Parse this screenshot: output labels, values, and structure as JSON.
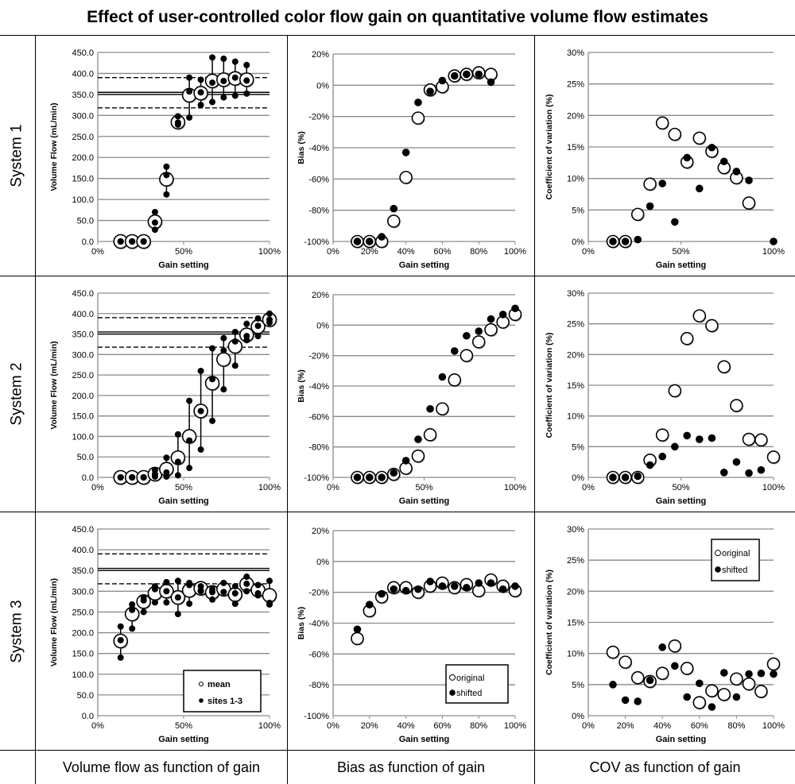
{
  "title": "Effect of user-controlled color flow gain on quantitative volume flow estimates",
  "rows": [
    "System 1",
    "System 2",
    "System 3"
  ],
  "footers": [
    "Volume flow as function of gain",
    "Bias as function of gain",
    "COV as function of gain"
  ],
  "chart_data": [
    {
      "type": "scatter",
      "system": "System 1",
      "ylabel": "Volume Flow (mL/min)",
      "xlabel": "Gain setting",
      "ylim": [
        0,
        450
      ],
      "xlim": [
        0,
        100
      ],
      "yticks": [
        "0.0",
        "50.0",
        "100.0",
        "150.0",
        "200.0",
        "250.0",
        "300.0",
        "350.0",
        "400.0",
        "450.0"
      ],
      "xticks": [
        "0%",
        "50%",
        "100%"
      ],
      "ref_lines": [
        {
          "value": 390,
          "style": "dashed"
        },
        {
          "value": 355,
          "style": "solid"
        },
        {
          "value": 350,
          "style": "solid"
        },
        {
          "value": 318,
          "style": "dashed"
        }
      ],
      "x": [
        13.3,
        20,
        26.7,
        33.3,
        40,
        46.7,
        53.3,
        60,
        66.7,
        73.3,
        80,
        86.7
      ],
      "mean": [
        0,
        0,
        0,
        47,
        148,
        284,
        348,
        353,
        382,
        385,
        388,
        385
      ],
      "sites": [
        [
          0,
          0,
          0
        ],
        [
          0,
          0,
          0
        ],
        [
          0,
          0,
          0
        ],
        [
          70,
          45,
          28
        ],
        [
          178,
          158,
          112
        ],
        [
          298,
          283,
          278
        ],
        [
          390,
          357,
          295
        ],
        [
          385,
          355,
          325
        ],
        [
          438,
          378,
          332
        ],
        [
          435,
          382,
          343
        ],
        [
          428,
          390,
          347
        ],
        [
          420,
          383,
          352
        ]
      ]
    },
    {
      "type": "scatter",
      "system": "System 1",
      "ylabel": "Bias (%)",
      "xlabel": "Gain setting",
      "ylim": [
        -100,
        20
      ],
      "xlim": [
        0,
        100
      ],
      "yticks": [
        "-100%",
        "-80%",
        "-60%",
        "-40%",
        "-20%",
        "0%",
        "20%"
      ],
      "xticks": [
        "0%",
        "20%",
        "40%",
        "60%",
        "80%",
        "100%"
      ],
      "x": [
        13.3,
        20,
        26.7,
        33.3,
        40,
        46.7,
        53.3,
        60,
        66.7,
        73.3,
        80,
        86.7
      ],
      "series": [
        {
          "name": "original",
          "values": [
            -100,
            -100,
            -100,
            -87,
            -59,
            -21,
            -3,
            -1,
            6,
            7,
            8,
            7
          ]
        },
        {
          "name": "shifted",
          "values": [
            -100,
            -100,
            -97,
            -79,
            -43,
            -11,
            -4,
            3,
            6,
            7,
            7,
            2
          ]
        }
      ]
    },
    {
      "type": "scatter",
      "system": "System 1",
      "ylabel": "Coefficient of variation (%)",
      "xlabel": "Gain setting",
      "ylim": [
        0,
        30
      ],
      "xlim": [
        0,
        100
      ],
      "yticks": [
        "0%",
        "5%",
        "10%",
        "15%",
        "20%",
        "25%",
        "30%"
      ],
      "xticks": [
        "0%",
        "50%",
        "100%"
      ],
      "x": [
        13.3,
        20,
        26.7,
        33.3,
        40,
        46.7,
        53.3,
        60,
        66.7,
        73.3,
        80,
        86.7,
        100
      ],
      "series": [
        {
          "name": "original",
          "values": [
            0,
            0,
            4.3,
            9.1,
            18.8,
            17.0,
            12.6,
            16.4,
            14.3,
            11.7,
            10.1,
            6.1,
            null
          ]
        },
        {
          "name": "shifted",
          "values": [
            0,
            0,
            0.3,
            5.6,
            9.2,
            3.1,
            13.3,
            8.4,
            14.9,
            12.7,
            11.1,
            9.7,
            0
          ]
        }
      ]
    },
    {
      "type": "scatter",
      "system": "System 2",
      "ylabel": "Volume Flow (mL/min)",
      "xlabel": "Gain setting",
      "ylim": [
        0,
        450
      ],
      "xlim": [
        0,
        100
      ],
      "yticks": [
        "0.0",
        "50.0",
        "100.0",
        "150.0",
        "200.0",
        "250.0",
        "300.0",
        "350.0",
        "400.0",
        "450.0"
      ],
      "xticks": [
        "0%",
        "50%",
        "100%"
      ],
      "ref_lines": [
        {
          "value": 390,
          "style": "dashed"
        },
        {
          "value": 355,
          "style": "solid"
        },
        {
          "value": 350,
          "style": "solid"
        },
        {
          "value": 318,
          "style": "dashed"
        }
      ],
      "x": [
        13.3,
        20,
        26.7,
        33.3,
        40,
        46.7,
        53.3,
        60,
        66.7,
        73.3,
        80,
        86.7,
        93.3,
        100
      ],
      "mean": [
        0,
        0,
        0,
        8,
        20,
        48,
        100,
        162,
        230,
        288,
        320,
        348,
        368,
        385
      ],
      "sites": [
        [
          0,
          0,
          0
        ],
        [
          0,
          0,
          0
        ],
        [
          0,
          0,
          0
        ],
        [
          18,
          8,
          2
        ],
        [
          48,
          12,
          2
        ],
        [
          105,
          38,
          5
        ],
        [
          187,
          90,
          23
        ],
        [
          260,
          162,
          68
        ],
        [
          315,
          240,
          138
        ],
        [
          340,
          310,
          215
        ],
        [
          355,
          332,
          273
        ],
        [
          375,
          345,
          335
        ],
        [
          388,
          370,
          345
        ],
        [
          400,
          385,
          378
        ]
      ]
    },
    {
      "type": "scatter",
      "system": "System 2",
      "ylabel": "Bias (%)",
      "xlabel": "Gain setting",
      "ylim": [
        -100,
        20
      ],
      "xlim": [
        0,
        100
      ],
      "yticks": [
        "-100%",
        "-80%",
        "-60%",
        "-40%",
        "-20%",
        "0%",
        "20%"
      ],
      "xticks": [
        "0%",
        "50%",
        "100%"
      ],
      "x": [
        13.3,
        20,
        26.7,
        33.3,
        40,
        46.7,
        53.3,
        60,
        66.7,
        73.3,
        80,
        86.7,
        93.3,
        100
      ],
      "series": [
        {
          "name": "original",
          "values": [
            -100,
            -100,
            -100,
            -98,
            -94,
            -86,
            -72,
            -55,
            -36,
            -20,
            -11,
            -3,
            2,
            7
          ]
        },
        {
          "name": "shifted",
          "values": [
            -100,
            -100,
            -100,
            -97,
            -89,
            -75,
            -55,
            -34,
            -17,
            -7,
            -4,
            4,
            7,
            11
          ]
        }
      ]
    },
    {
      "type": "scatter",
      "system": "System 2",
      "ylabel": "Coefficient of variation (%)",
      "xlabel": "Gain setting",
      "ylim": [
        0,
        30
      ],
      "xlim": [
        0,
        100
      ],
      "yticks": [
        "0%",
        "5%",
        "10%",
        "15%",
        "20%",
        "25%",
        "30%"
      ],
      "xticks": [
        "0%",
        "50%",
        "100%"
      ],
      "x": [
        13.3,
        20,
        26.7,
        33.3,
        40,
        46.7,
        53.3,
        60,
        66.7,
        73.3,
        80,
        86.7,
        93.3,
        100
      ],
      "series": [
        {
          "name": "original",
          "values": [
            0,
            0,
            0,
            2.8,
            6.9,
            14.1,
            22.6,
            26.3,
            24.7,
            18.0,
            11.7,
            6.2,
            6.1,
            3.3
          ]
        },
        {
          "name": "shifted",
          "values": [
            0,
            0,
            0.2,
            2.0,
            3.4,
            5.0,
            6.8,
            6.2,
            6.4,
            0.8,
            2.5,
            0.7,
            1.2,
            null
          ]
        }
      ]
    },
    {
      "type": "scatter",
      "system": "System 3",
      "ylabel": "Volume Flow (mL/min)",
      "xlabel": "Gain setting",
      "ylim": [
        0,
        450
      ],
      "xlim": [
        0,
        100
      ],
      "yticks": [
        "0.0",
        "50.0",
        "100.0",
        "150.0",
        "200.0",
        "250.0",
        "300.0",
        "350.0",
        "400.0",
        "450.0"
      ],
      "xticks": [
        "0%",
        "50%",
        "100%"
      ],
      "ref_lines": [
        {
          "value": 390,
          "style": "dashed"
        },
        {
          "value": 355,
          "style": "solid"
        },
        {
          "value": 350,
          "style": "solid"
        },
        {
          "value": 318,
          "style": "dashed"
        }
      ],
      "x": [
        13.3,
        20,
        26.7,
        33.3,
        40,
        46.7,
        53.3,
        60,
        66.7,
        73.3,
        80,
        86.7,
        93.3,
        100
      ],
      "mean": [
        180,
        245,
        275,
        295,
        300,
        285,
        302,
        307,
        297,
        305,
        292,
        317,
        303,
        290
      ],
      "sites": [
        [
          215,
          182,
          140
        ],
        [
          268,
          255,
          210
        ],
        [
          285,
          278,
          250
        ],
        [
          312,
          305,
          273
        ],
        [
          322,
          300,
          273
        ],
        [
          325,
          285,
          245
        ],
        [
          320,
          315,
          270
        ],
        [
          312,
          302,
          300
        ],
        [
          305,
          298,
          280
        ],
        [
          320,
          298,
          298
        ],
        [
          312,
          295,
          270
        ],
        [
          335,
          318,
          300
        ],
        [
          315,
          295,
          290
        ],
        [
          325,
          272,
          268
        ]
      ],
      "legend": [
        "mean",
        "sites 1-3"
      ]
    },
    {
      "type": "scatter",
      "system": "System 3",
      "ylabel": "Bias (%)",
      "xlabel": "Gain setting",
      "ylim": [
        -100,
        20
      ],
      "xlim": [
        0,
        100
      ],
      "yticks": [
        "-100%",
        "-80%",
        "-60%",
        "-40%",
        "-20%",
        "0%",
        "20%"
      ],
      "xticks": [
        "0%",
        "20%",
        "40%",
        "60%",
        "80%",
        "100%"
      ],
      "x": [
        13.3,
        20,
        26.7,
        33.3,
        40,
        46.7,
        53.3,
        60,
        66.7,
        73.3,
        80,
        86.7,
        93.3,
        100
      ],
      "series": [
        {
          "name": "original",
          "values": [
            -50,
            -32,
            -23,
            -17,
            -17,
            -20,
            -16,
            -14,
            -17,
            -15,
            -19,
            -12,
            -16,
            -19
          ]
        },
        {
          "name": "shifted",
          "values": [
            -44,
            -28,
            -21,
            -18,
            -19,
            -18,
            -13,
            -16,
            -16,
            -17,
            -14,
            -14,
            -18,
            -16
          ]
        }
      ],
      "legend": [
        "original",
        "shifted"
      ]
    },
    {
      "type": "scatter",
      "system": "System 3",
      "ylabel": "Coefficient of variation (%)",
      "xlabel": "Gain setting",
      "ylim": [
        0,
        30
      ],
      "xlim": [
        0,
        100
      ],
      "yticks": [
        "0%",
        "5%",
        "10%",
        "15%",
        "20%",
        "25%",
        "30%"
      ],
      "xticks": [
        "0%",
        "20%",
        "40%",
        "60%",
        "80%",
        "100%"
      ],
      "x": [
        13.3,
        20,
        26.7,
        33.3,
        40,
        46.7,
        53.3,
        60,
        66.7,
        73.3,
        80,
        86.7,
        93.3,
        100
      ],
      "series": [
        {
          "name": "original",
          "values": [
            10.2,
            8.6,
            6.1,
            5.5,
            6.8,
            11.2,
            7.6,
            2.1,
            4.0,
            3.4,
            5.9,
            5.1,
            3.9,
            8.3
          ]
        },
        {
          "name": "shifted",
          "values": [
            5.0,
            2.5,
            2.3,
            5.7,
            11.0,
            8.0,
            3.0,
            5.2,
            1.4,
            6.9,
            3.0,
            6.7,
            6.8,
            6.7
          ]
        }
      ],
      "legend": [
        "original",
        "shifted"
      ]
    }
  ]
}
